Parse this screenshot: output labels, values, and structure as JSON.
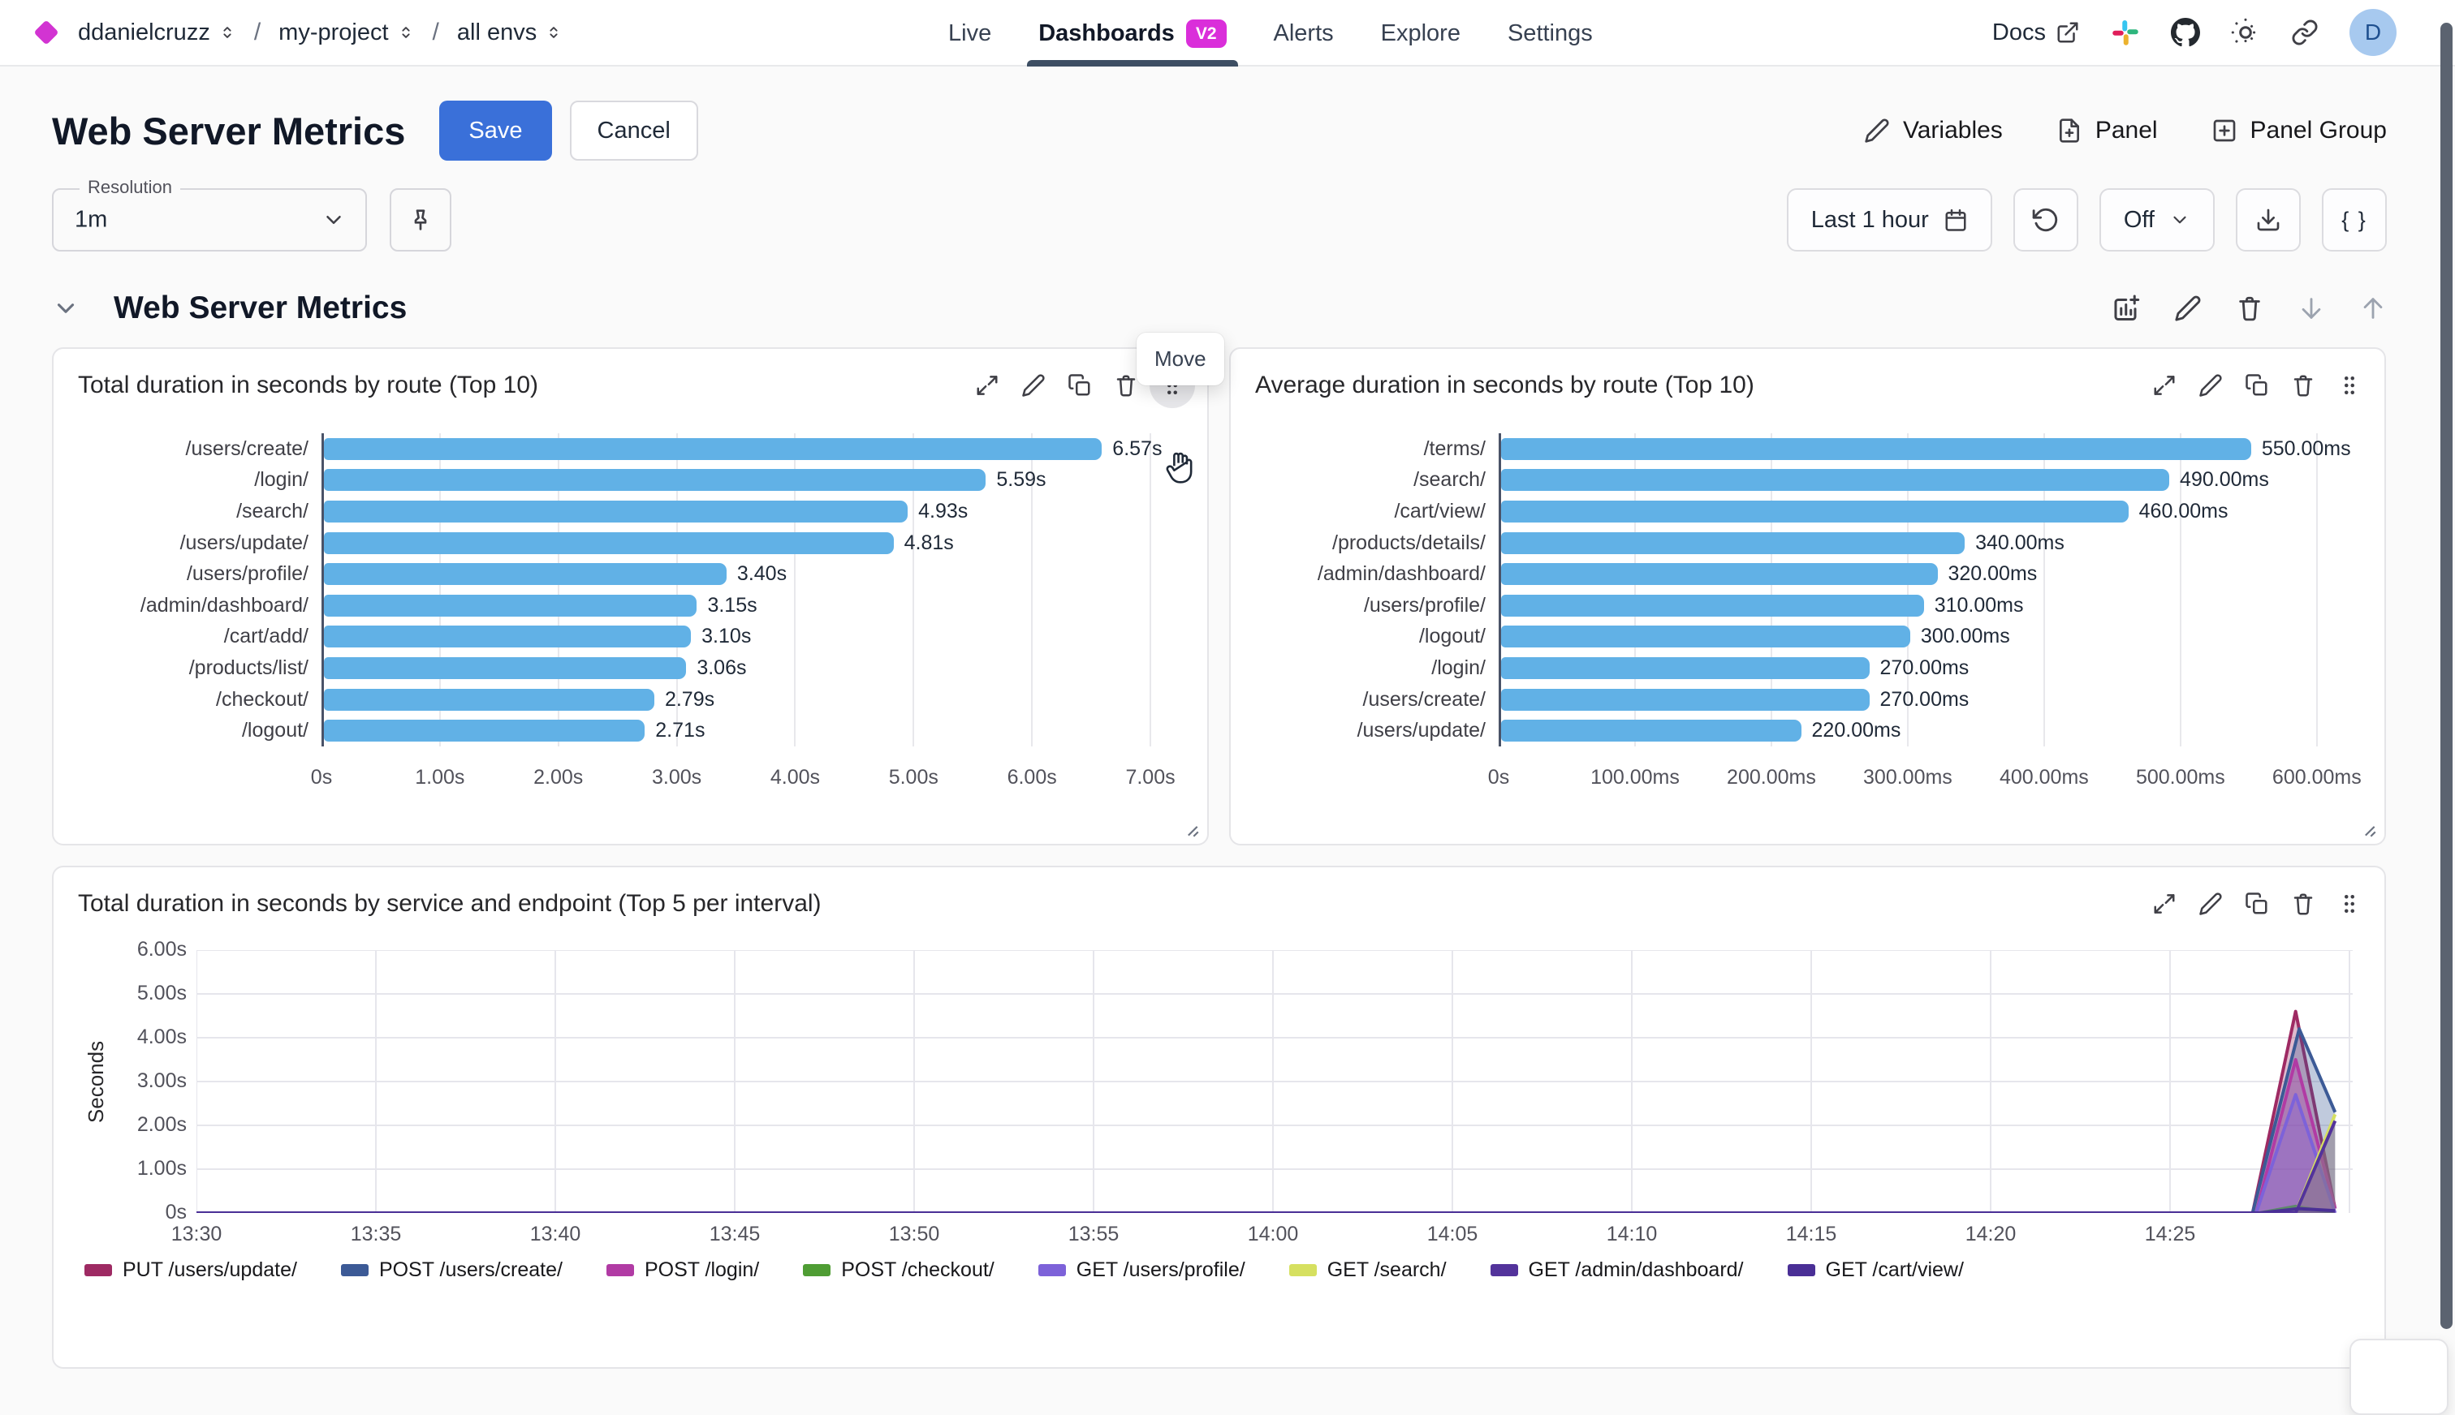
{
  "header": {
    "breadcrumb": [
      {
        "label": "ddanielcruzz"
      },
      {
        "label": "my-project"
      },
      {
        "label": "all envs"
      }
    ],
    "nav": [
      {
        "label": "Live",
        "active": false
      },
      {
        "label": "Dashboards",
        "badge": "V2",
        "active": true
      },
      {
        "label": "Alerts",
        "active": false
      },
      {
        "label": "Explore",
        "active": false
      },
      {
        "label": "Settings",
        "active": false
      }
    ],
    "docs_label": "Docs",
    "avatar_initial": "D"
  },
  "toolbar": {
    "title": "Web Server Metrics",
    "save_label": "Save",
    "cancel_label": "Cancel",
    "variables_label": "Variables",
    "panel_label": "Panel",
    "panel_group_label": "Panel Group"
  },
  "controls": {
    "resolution_label": "Resolution",
    "resolution_value": "1m",
    "time_range_label": "Last 1 hour",
    "refresh_off_label": "Off",
    "braces_label": "{ }"
  },
  "section": {
    "title": "Web Server Metrics",
    "move_tooltip": "Move"
  },
  "colors": {
    "accent_blue": "#3a70d9",
    "bar_blue": "#61b1e6",
    "brand_magenta": "#da2eda",
    "active_tab_underline": "#3d4e63"
  },
  "chart_data": [
    {
      "type": "bar",
      "orientation": "horizontal",
      "title": "Total duration in seconds by route (Top 10)",
      "categories": [
        "/users/create/",
        "/login/",
        "/search/",
        "/users/update/",
        "/users/profile/",
        "/admin/dashboard/",
        "/cart/add/",
        "/products/list/",
        "/checkout/",
        "/logout/"
      ],
      "values": [
        6.57,
        5.59,
        4.93,
        4.81,
        3.4,
        3.15,
        3.1,
        3.06,
        2.79,
        2.71
      ],
      "value_labels": [
        "6.57s",
        "5.59s",
        "4.93s",
        "4.81s",
        "3.40s",
        "3.15s",
        "3.10s",
        "3.06s",
        "2.79s",
        "2.71s"
      ],
      "tick_values": [
        0,
        1,
        2,
        3,
        4,
        5,
        6,
        7
      ],
      "x_ticks": [
        "0s",
        "1.00s",
        "2.00s",
        "3.00s",
        "4.00s",
        "5.00s",
        "6.00s",
        "7.00s"
      ],
      "xlim": [
        0,
        7.37
      ],
      "unit": "s",
      "bar_color": "#61b1e6",
      "grid": true
    },
    {
      "type": "bar",
      "orientation": "horizontal",
      "title": "Average duration in seconds by route (Top 10)",
      "categories": [
        "/terms/",
        "/search/",
        "/cart/view/",
        "/products/details/",
        "/admin/dashboard/",
        "/users/profile/",
        "/logout/",
        "/login/",
        "/users/create/",
        "/users/update/"
      ],
      "values": [
        550,
        490,
        460,
        340,
        320,
        310,
        300,
        270,
        270,
        220
      ],
      "value_labels": [
        "550.00ms",
        "490.00ms",
        "460.00ms",
        "340.00ms",
        "320.00ms",
        "310.00ms",
        "300.00ms",
        "270.00ms",
        "270.00ms",
        "220.00ms"
      ],
      "tick_values": [
        0,
        100,
        200,
        300,
        400,
        500,
        600
      ],
      "x_ticks": [
        "0s",
        "100.00ms",
        "200.00ms",
        "300.00ms",
        "400.00ms",
        "500.00ms",
        "600.00ms"
      ],
      "xlim": [
        0,
        640
      ],
      "unit": "ms",
      "bar_color": "#61b1e6",
      "grid": true
    },
    {
      "type": "area",
      "title": "Total duration in seconds by service and endpoint (Top 5 per interval)",
      "ylabel": "Seconds",
      "y_ticks": [
        "6.00s",
        "5.00s",
        "4.00s",
        "3.00s",
        "2.00s",
        "1.00s",
        "0s"
      ],
      "y_tick_values": [
        6,
        5,
        4,
        3,
        2,
        1,
        0
      ],
      "ylim": [
        0,
        6
      ],
      "x_ticks": [
        "13:30",
        "13:35",
        "13:40",
        "13:45",
        "13:50",
        "13:55",
        "14:00",
        "14:05",
        "14:10",
        "14:15",
        "14:20",
        "14:25"
      ],
      "x_tick_minutes": [
        0,
        5,
        10,
        15,
        20,
        25,
        30,
        35,
        40,
        45,
        50,
        55
      ],
      "x_range_minutes": [
        0,
        60
      ],
      "grid": true,
      "legend_position": "bottom",
      "series": [
        {
          "name": "PUT /users/update/",
          "color": "#9e2a63",
          "points": [
            [
              0,
              0
            ],
            [
              57.3,
              0
            ],
            [
              58.5,
              4.6
            ],
            [
              59.6,
              0.1
            ]
          ]
        },
        {
          "name": "POST /users/create/",
          "color": "#3c5a96",
          "points": [
            [
              0,
              0
            ],
            [
              57.3,
              0
            ],
            [
              58.6,
              4.2
            ],
            [
              59.6,
              2.3
            ]
          ]
        },
        {
          "name": "POST /login/",
          "color": "#b13ba4",
          "points": [
            [
              0,
              0
            ],
            [
              57.4,
              0
            ],
            [
              58.5,
              3.5
            ],
            [
              59.6,
              0.1
            ]
          ]
        },
        {
          "name": "POST /checkout/",
          "color": "#4f9d34",
          "points": [
            [
              0,
              0
            ],
            [
              57.5,
              0
            ],
            [
              58.5,
              0.15
            ],
            [
              59.6,
              0.0
            ]
          ]
        },
        {
          "name": "GET /users/profile/",
          "color": "#7d62d9",
          "points": [
            [
              0,
              0
            ],
            [
              57.4,
              0
            ],
            [
              58.5,
              2.7
            ],
            [
              59.6,
              0.0
            ]
          ]
        },
        {
          "name": "GET /search/",
          "color": "#d6e060",
          "points": [
            [
              0,
              0
            ],
            [
              58.5,
              0
            ],
            [
              59.6,
              2.25
            ]
          ]
        },
        {
          "name": "GET /admin/dashboard/",
          "color": "#53339b",
          "points": [
            [
              0,
              0
            ],
            [
              58.5,
              0
            ],
            [
              59.6,
              2.1
            ]
          ]
        },
        {
          "name": "GET /cart/view/",
          "color": "#4a2f96",
          "points": [
            [
              0,
              0
            ],
            [
              57.5,
              0
            ],
            [
              58.6,
              0.1
            ],
            [
              59.6,
              0.05
            ]
          ]
        }
      ]
    }
  ]
}
